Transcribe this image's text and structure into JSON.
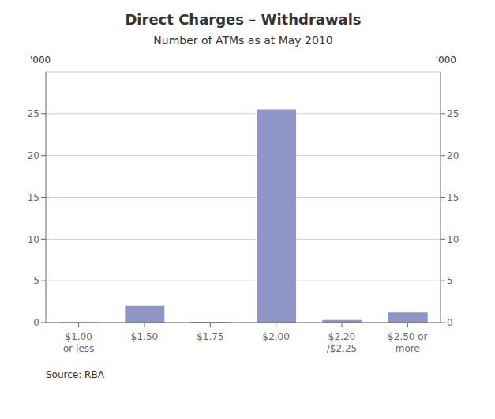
{
  "chart_data": {
    "type": "bar",
    "title": "Direct Charges – Withdrawals",
    "subtitle": "Number of ATMs as at May 2010",
    "categories": [
      "$1.00\nor less",
      "$1.50",
      "$1.75",
      "$2.00",
      "$2.20\n/$2.25",
      "$2.50 or\nmore"
    ],
    "values": [
      0.05,
      2.0,
      0.1,
      25.5,
      0.3,
      1.2
    ],
    "color": "#8f95c6",
    "ylim": [
      0,
      30
    ],
    "yticks": [
      0,
      5,
      10,
      15,
      20,
      25
    ],
    "y2lim": [
      0,
      30
    ],
    "y2ticks": [
      0,
      5,
      10,
      15,
      20,
      25
    ],
    "ylabel": "'000",
    "y2label": "'000",
    "source": "Source: RBA",
    "grid": true
  }
}
